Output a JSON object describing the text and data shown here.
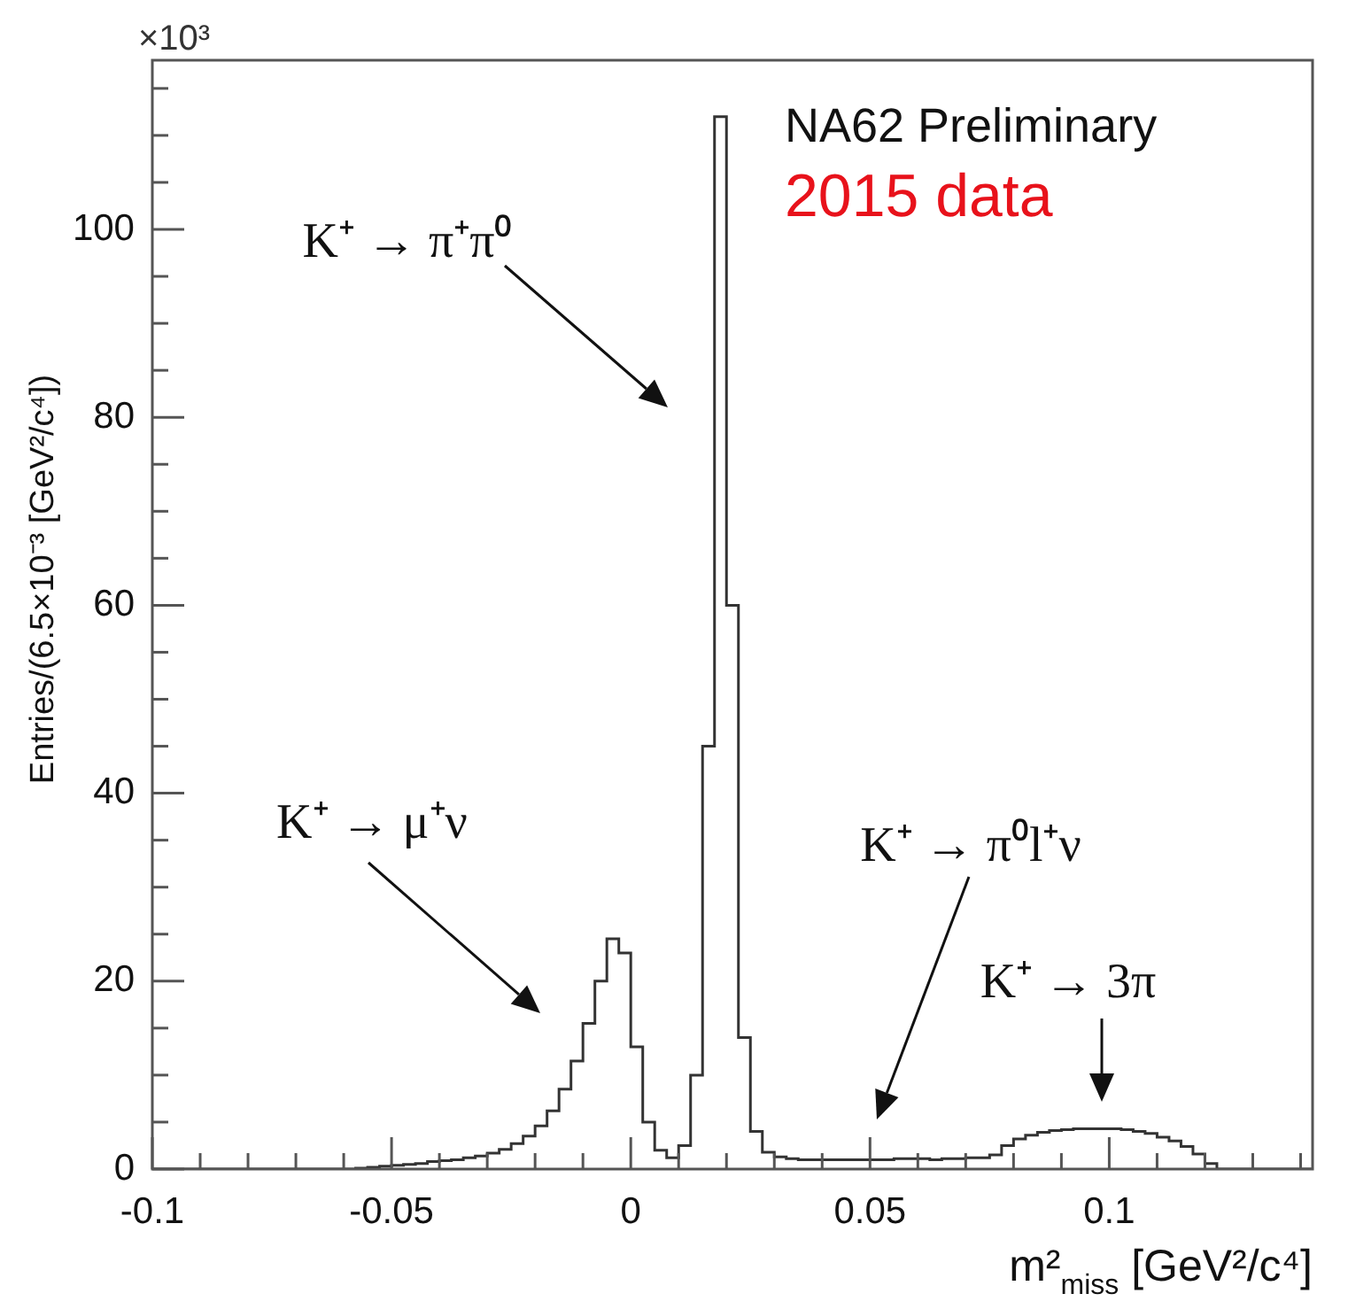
{
  "chart_data": {
    "type": "histogram",
    "ylabel": "Entries/(6.5×10⁻³ [GeV²/c⁴])",
    "xlabel": "m²$_{miss}$ [GeV²/c⁴]",
    "color": "#333333",
    "bins": [
      -0.1,
      -0.0975,
      -0.095,
      -0.0925,
      -0.09,
      -0.0875,
      -0.085,
      -0.0825,
      -0.08,
      -0.0775,
      -0.075,
      -0.0725,
      -0.07,
      -0.0675,
      -0.065,
      -0.0625,
      -0.06,
      -0.0575,
      -0.055,
      -0.0525,
      -0.05,
      -0.0475,
      -0.045,
      -0.0425,
      -0.04,
      -0.0375,
      -0.035,
      -0.0325,
      -0.03,
      -0.0275,
      -0.025,
      -0.0225,
      -0.02,
      -0.0175,
      -0.015,
      -0.0125,
      -0.01,
      -0.0075,
      -0.005,
      -0.0025,
      0,
      0.0025,
      0.005,
      0.0075,
      0.01,
      0.0125,
      0.015,
      0.0175,
      0.02,
      0.0225,
      0.025,
      0.0275,
      0.03,
      0.0325,
      0.035,
      0.0375,
      0.04,
      0.0425,
      0.045,
      0.0475,
      0.05,
      0.0525,
      0.055,
      0.0575,
      0.06,
      0.0625,
      0.065,
      0.0675,
      0.07,
      0.0725,
      0.075,
      0.0775,
      0.08,
      0.0825,
      0.085,
      0.0875,
      0.09,
      0.0925,
      0.095,
      0.0975,
      0.1,
      0.1025,
      0.105,
      0.1075,
      0.11,
      0.1125,
      0.115,
      0.1175,
      0.12,
      0.1225,
      0.125,
      0.1275,
      0.13,
      0.1325,
      0.135,
      0.1375,
      0.14,
      0.1425
    ],
    "values": [
      0,
      0,
      0,
      0,
      0,
      0,
      0,
      0,
      0,
      0,
      0,
      0,
      0,
      0,
      0,
      0,
      0,
      0.1,
      0.2,
      0.3,
      0.4,
      0.5,
      0.6,
      0.8,
      0.9,
      1.0,
      1.2,
      1.4,
      1.7,
      2.1,
      2.7,
      3.5,
      4.6,
      6.2,
      8.5,
      11.5,
      15.5,
      20,
      24.5,
      23,
      13,
      5,
      2,
      1.2,
      2.5,
      10,
      45,
      112,
      60,
      14,
      4,
      1.8,
      1.3,
      1.1,
      1.0,
      1.0,
      1.0,
      1.0,
      1.0,
      1.0,
      1.0,
      1.0,
      1.1,
      1.1,
      1.1,
      1.0,
      1.1,
      1.1,
      1.2,
      1.2,
      1.5,
      2.5,
      3.2,
      3.6,
      3.9,
      4.1,
      4.2,
      4.3,
      4.3,
      4.3,
      4.3,
      4.2,
      4.0,
      3.8,
      3.4,
      3.0,
      2.4,
      1.6,
      0.6,
      0,
      0,
      0,
      0,
      0,
      0,
      0,
      0
    ],
    "xlim": [
      -0.1,
      0.1425
    ],
    "ylim": [
      0,
      118
    ],
    "xticks": [
      -0.1,
      {
        "value": -0.09,
        "label": null
      },
      {
        "value": -0.08,
        "label": null
      },
      {
        "value": -0.07,
        "label": null
      },
      {
        "value": -0.06,
        "label": null
      },
      -0.05,
      {
        "value": -0.04,
        "label": null
      },
      {
        "value": -0.03,
        "label": null
      },
      {
        "value": -0.02,
        "label": null
      },
      {
        "value": -0.01,
        "label": null
      },
      0,
      {
        "value": 0.01,
        "label": null
      },
      {
        "value": 0.02,
        "label": null
      },
      {
        "value": 0.03,
        "label": null
      },
      {
        "value": 0.04,
        "label": null
      },
      0.05,
      {
        "value": 0.06,
        "label": null
      },
      {
        "value": 0.07,
        "label": null
      },
      {
        "value": 0.08,
        "label": null
      },
      {
        "value": 0.09,
        "label": null
      },
      0.1,
      {
        "value": 0.11,
        "label": null
      },
      {
        "value": 0.12,
        "label": null
      },
      {
        "value": 0.13,
        "label": null
      },
      {
        "value": 0.14,
        "label": null
      }
    ],
    "yticks": [
      0,
      {
        "value": 5,
        "label": null
      },
      {
        "value": 10,
        "label": null
      },
      {
        "value": 15,
        "label": null
      },
      20,
      {
        "value": 25,
        "label": null
      },
      {
        "value": 30,
        "label": null
      },
      {
        "value": 35,
        "label": null
      },
      40,
      {
        "value": 45,
        "label": null
      },
      {
        "value": 50,
        "label": null
      },
      {
        "value": 55,
        "label": null
      },
      60,
      {
        "value": 65,
        "label": null
      },
      {
        "value": 70,
        "label": null
      },
      {
        "value": 75,
        "label": null
      },
      80,
      {
        "value": 85,
        "label": null
      },
      {
        "value": 90,
        "label": null
      },
      {
        "value": 95,
        "label": null
      },
      100,
      {
        "value": 105,
        "label": null
      },
      {
        "value": 110,
        "label": null
      },
      {
        "value": 115,
        "label": null
      }
    ],
    "grid": false,
    "legend": false,
    "annotations": [
      "×10³",
      "NA62 Preliminary",
      "2015 data",
      "K⁺ → π⁺π⁰",
      "K⁺ → μ⁺ν",
      "K⁺ → π⁰l⁺ν",
      "K⁺ → 3π"
    ]
  }
}
